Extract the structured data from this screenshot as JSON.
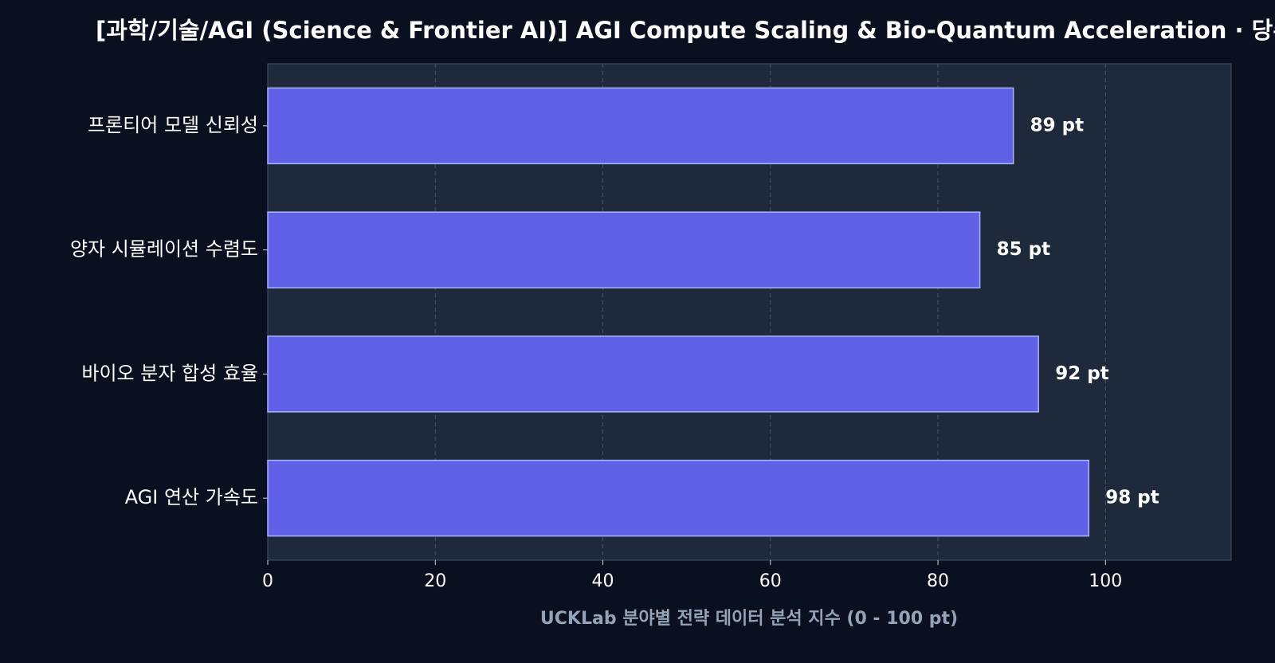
{
  "chart_data": {
    "type": "barh",
    "title": "[과학/기술/AGI (Science & Frontier AI)] AGI Compute Scaling & Bio-Quantum Acceleration · 당주",
    "x_label": "UCKLab 분야별 전략 데이터 분석 지수 (0 - 100 pt)",
    "categories": [
      "프론티어 모델 신뢰성",
      "양자 시뮬레이션 수렴도",
      "바이오 분자 합성 효율",
      "AGI 연산 가속도"
    ],
    "values": [
      89,
      85,
      92,
      98
    ],
    "value_labels": [
      "89 pt",
      "85 pt",
      "92 pt",
      "98 pt"
    ],
    "color": "#6061e6",
    "edge_color": "#a5b4fc",
    "xlim": [
      0,
      115
    ],
    "xticks": [
      0,
      20,
      40,
      60,
      80,
      100
    ],
    "grid": true
  }
}
